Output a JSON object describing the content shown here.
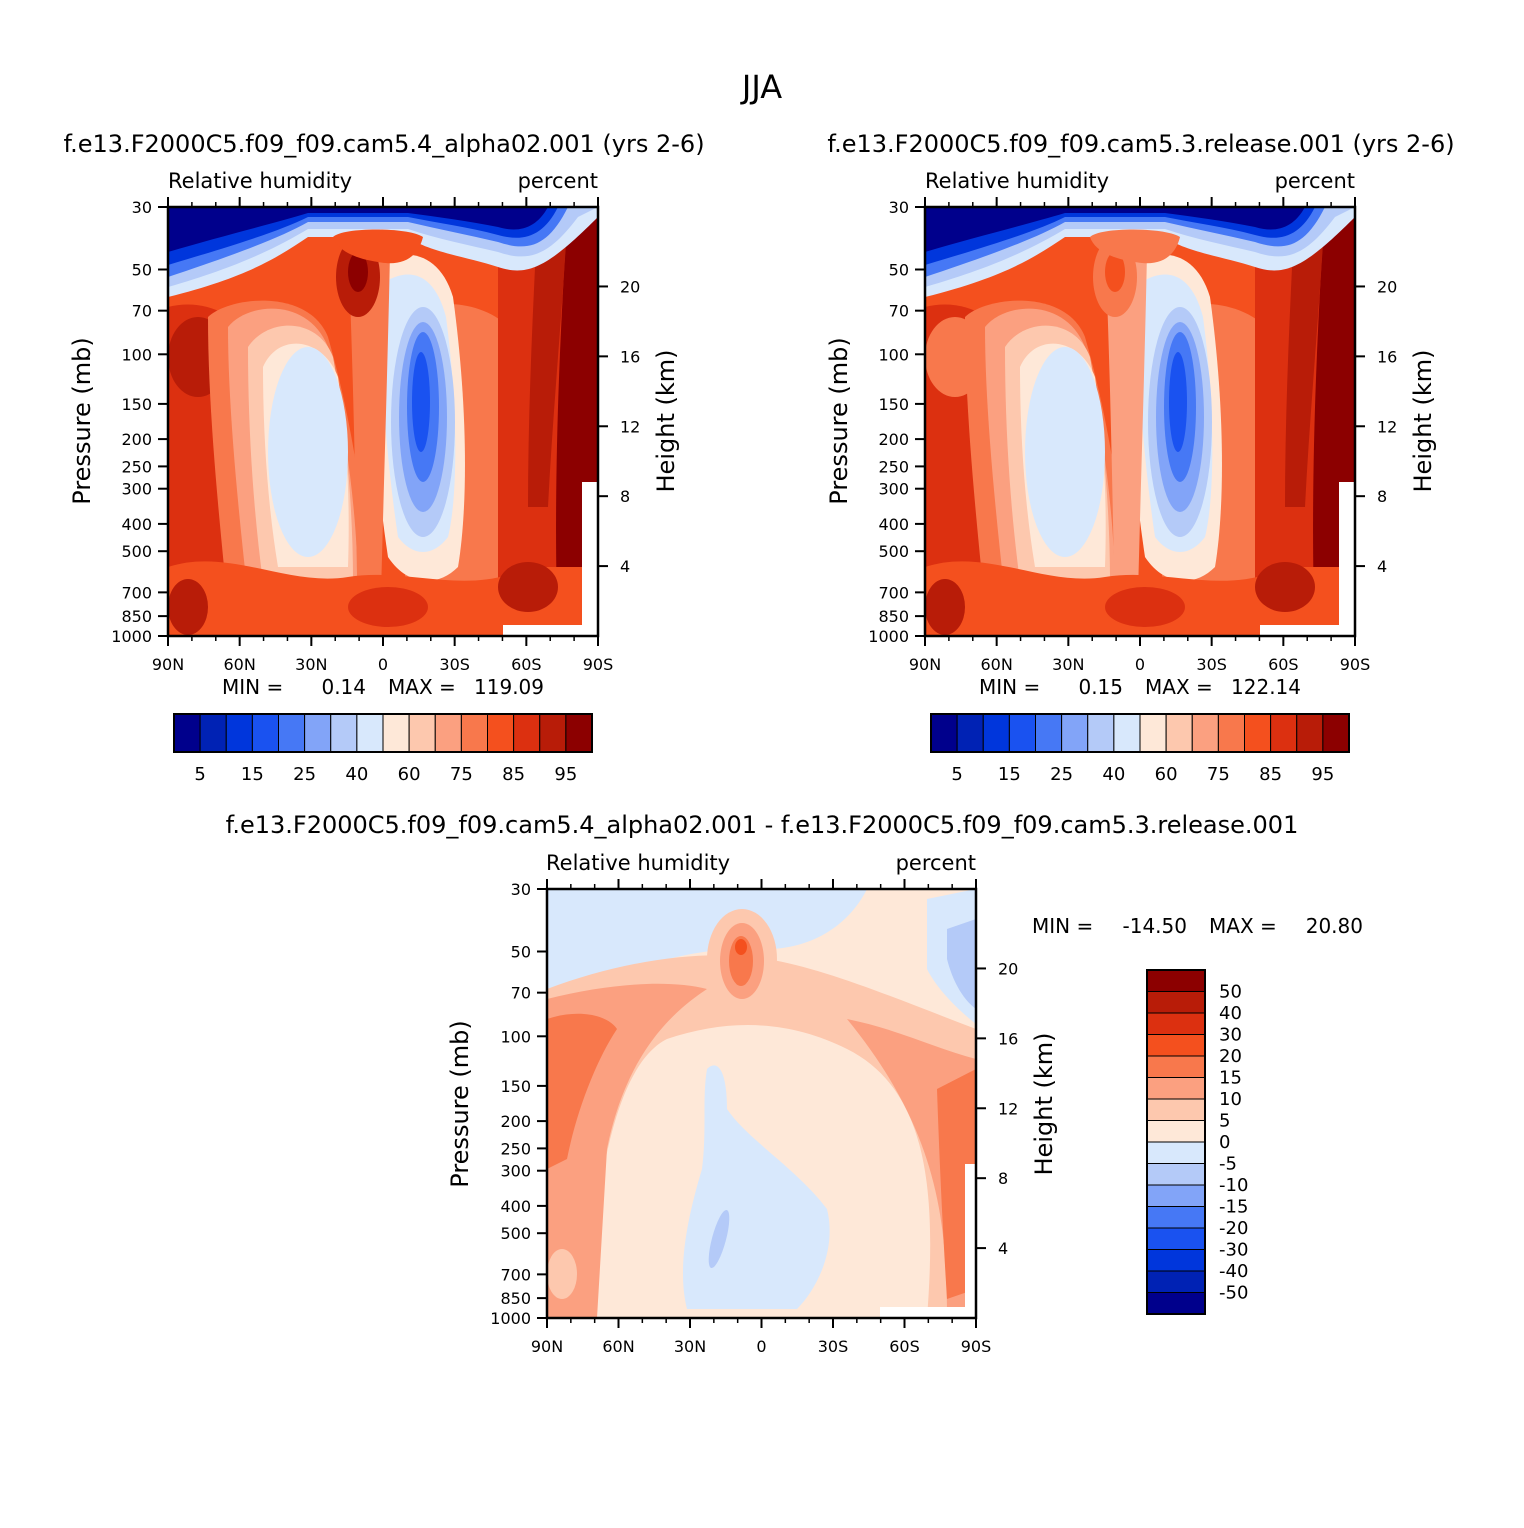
{
  "figure": {
    "title": "JJA"
  },
  "palette": {
    "full": [
      "#00008c",
      "#0022b4",
      "#0036dc",
      "#1a52f0",
      "#4678f5",
      "#82a4f8",
      "#b4caf8",
      "#d8e8fc",
      "#fee8d8",
      "#fdc8ae",
      "#fba080",
      "#f8784c",
      "#f4501e",
      "#dc3010",
      "#b81c08",
      "#8c0000"
    ],
    "diff": [
      "#00008c",
      "#0022b4",
      "#0036dc",
      "#1a52f0",
      "#4678f5",
      "#82a4f8",
      "#b4caf8",
      "#d8e8fc",
      "#fee8d8",
      "#fdc8ae",
      "#fba080",
      "#f8784c",
      "#f4501e",
      "#dc3010",
      "#b81c08",
      "#8c0000"
    ]
  },
  "chart_data": [
    {
      "type": "heatmap",
      "id": "panel1",
      "title": "f.e13.F2000C5.f09_f09.cam5.4_alpha02.001 (yrs 2-6)",
      "left_label": "Relative humidity",
      "right_label": "percent",
      "ylabel": "Pressure (mb)",
      "y2label": "Height (km)",
      "x_ticks": [
        "90N",
        "60N",
        "30N",
        "0",
        "30S",
        "60S",
        "90S"
      ],
      "y_ticks": [
        "30",
        "50",
        "70",
        "100",
        "150",
        "200",
        "250",
        "300",
        "400",
        "500",
        "700",
        "850",
        "1000"
      ],
      "y2_ticks": [
        "20",
        "16",
        "12",
        "8",
        "4"
      ],
      "stats": {
        "min_label": "MIN =",
        "min": "0.14",
        "max_label": "MAX =",
        "max": "119.09"
      },
      "levels": [
        "5",
        "15",
        "25",
        "40",
        "60",
        "75",
        "85",
        "95"
      ],
      "variant": "a"
    },
    {
      "type": "heatmap",
      "id": "panel2",
      "title": "f.e13.F2000C5.f09_f09.cam5.3.release.001 (yrs 2-6)",
      "left_label": "Relative humidity",
      "right_label": "percent",
      "ylabel": "Pressure (mb)",
      "y2label": "Height (km)",
      "x_ticks": [
        "90N",
        "60N",
        "30N",
        "0",
        "30S",
        "60S",
        "90S"
      ],
      "y_ticks": [
        "30",
        "50",
        "70",
        "100",
        "150",
        "200",
        "250",
        "300",
        "400",
        "500",
        "700",
        "850",
        "1000"
      ],
      "y2_ticks": [
        "20",
        "16",
        "12",
        "8",
        "4"
      ],
      "stats": {
        "min_label": "MIN =",
        "min": "0.15",
        "max_label": "MAX =",
        "max": "122.14"
      },
      "levels": [
        "5",
        "15",
        "25",
        "40",
        "60",
        "75",
        "85",
        "95"
      ],
      "variant": "b"
    },
    {
      "type": "heatmap",
      "id": "panel3",
      "title": "f.e13.F2000C5.f09_f09.cam5.4_alpha02.001 - f.e13.F2000C5.f09_f09.cam5.3.release.001",
      "left_label": "Relative humidity",
      "right_label": "percent",
      "ylabel": "Pressure (mb)",
      "y2label": "Height (km)",
      "x_ticks": [
        "90N",
        "60N",
        "30N",
        "0",
        "30S",
        "60S",
        "90S"
      ],
      "y_ticks": [
        "30",
        "50",
        "70",
        "100",
        "150",
        "200",
        "250",
        "300",
        "400",
        "500",
        "700",
        "850",
        "1000"
      ],
      "y2_ticks": [
        "20",
        "16",
        "12",
        "8",
        "4"
      ],
      "stats": {
        "min_label": "MIN =",
        "min": "-14.50",
        "max_label": "MAX =",
        "max": "20.80"
      },
      "levels": [
        "50",
        "40",
        "30",
        "20",
        "15",
        "10",
        "5",
        "0",
        "-5",
        "-10",
        "-15",
        "-20",
        "-30",
        "-40",
        "-50"
      ],
      "variant": "diff"
    }
  ]
}
